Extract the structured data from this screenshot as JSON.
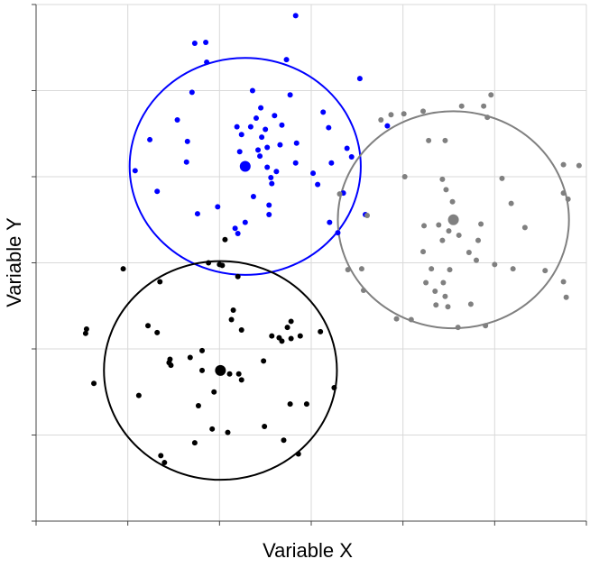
{
  "chart_data": {
    "type": "scatter",
    "title": "",
    "xlabel": "Variable X",
    "ylabel": "Variable Y",
    "xlim": [
      0,
      6
    ],
    "ylim": [
      0,
      6
    ],
    "grid": true,
    "tick_labels_visible": false,
    "legend": "none",
    "series": [
      {
        "color": "#0000ff",
        "center": [
          2.28,
          4.12
        ],
        "radius": 1.26,
        "points": [
          [
            1.73,
            5.55
          ],
          [
            1.85,
            5.56
          ],
          [
            2.83,
            5.87
          ],
          [
            1.86,
            5.33
          ],
          [
            2.73,
            5.36
          ],
          [
            3.53,
            5.14
          ],
          [
            1.7,
            4.98
          ],
          [
            2.36,
            5.0
          ],
          [
            2.77,
            4.95
          ],
          [
            1.54,
            4.66
          ],
          [
            2.45,
            4.8
          ],
          [
            2.6,
            4.71
          ],
          [
            3.13,
            4.75
          ],
          [
            3.83,
            4.59
          ],
          [
            2.19,
            4.58
          ],
          [
            2.4,
            4.68
          ],
          [
            2.34,
            4.58
          ],
          [
            2.5,
            4.55
          ],
          [
            2.68,
            4.6
          ],
          [
            3.19,
            4.57
          ],
          [
            1.24,
            4.43
          ],
          [
            1.65,
            4.41
          ],
          [
            2.24,
            4.49
          ],
          [
            2.46,
            4.46
          ],
          [
            2.42,
            4.31
          ],
          [
            2.84,
            4.39
          ],
          [
            2.66,
            4.37
          ],
          [
            1.64,
            4.17
          ],
          [
            2.22,
            4.29
          ],
          [
            2.52,
            4.34
          ],
          [
            2.44,
            4.24
          ],
          [
            2.83,
            4.16
          ],
          [
            3.39,
            4.33
          ],
          [
            1.08,
            4.07
          ],
          [
            2.52,
            4.11
          ],
          [
            2.62,
            4.06
          ],
          [
            3.22,
            4.16
          ],
          [
            3.44,
            4.23
          ],
          [
            3.02,
            4.04
          ],
          [
            2.56,
            3.99
          ],
          [
            3.07,
            3.91
          ],
          [
            1.32,
            3.83
          ],
          [
            2.57,
            3.92
          ],
          [
            3.35,
            3.81
          ],
          [
            2.37,
            3.77
          ],
          [
            1.98,
            3.65
          ],
          [
            2.54,
            3.67
          ],
          [
            1.76,
            3.57
          ],
          [
            3.59,
            3.56
          ],
          [
            2.54,
            3.56
          ],
          [
            2.28,
            3.47
          ],
          [
            3.2,
            3.47
          ],
          [
            2.17,
            3.4
          ],
          [
            3.29,
            3.35
          ],
          [
            2.2,
            3.34
          ]
        ]
      },
      {
        "color": "#808080",
        "center": [
          4.55,
          3.5
        ],
        "radius": 1.26,
        "points": [
          [
            4.96,
            4.95
          ],
          [
            4.64,
            4.82
          ],
          [
            4.88,
            4.82
          ],
          [
            4.92,
            4.69
          ],
          [
            3.76,
            4.66
          ],
          [
            3.87,
            4.72
          ],
          [
            4.01,
            4.73
          ],
          [
            4.22,
            4.76
          ],
          [
            4.28,
            4.42
          ],
          [
            4.46,
            4.42
          ],
          [
            5.75,
            4.14
          ],
          [
            5.92,
            4.13
          ],
          [
            4.02,
            4.0
          ],
          [
            4.43,
            3.97
          ],
          [
            5.08,
            3.98
          ],
          [
            4.47,
            3.85
          ],
          [
            5.75,
            3.81
          ],
          [
            3.31,
            3.8
          ],
          [
            5.8,
            3.74
          ],
          [
            4.54,
            3.71
          ],
          [
            5.18,
            3.69
          ],
          [
            3.61,
            3.55
          ],
          [
            4.56,
            3.48
          ],
          [
            4.23,
            3.43
          ],
          [
            4.39,
            3.44
          ],
          [
            4.5,
            3.37
          ],
          [
            4.85,
            3.45
          ],
          [
            5.33,
            3.41
          ],
          [
            4.61,
            3.32
          ],
          [
            4.43,
            3.26
          ],
          [
            4.82,
            3.26
          ],
          [
            4.22,
            3.13
          ],
          [
            4.72,
            3.12
          ],
          [
            4.8,
            3.03
          ],
          [
            5.0,
            2.98
          ],
          [
            3.4,
            2.92
          ],
          [
            3.55,
            2.93
          ],
          [
            4.31,
            2.93
          ],
          [
            4.51,
            2.92
          ],
          [
            5.2,
            2.93
          ],
          [
            5.55,
            2.91
          ],
          [
            4.25,
            2.77
          ],
          [
            4.44,
            2.77
          ],
          [
            5.75,
            2.78
          ],
          [
            3.57,
            2.68
          ],
          [
            4.35,
            2.67
          ],
          [
            4.46,
            2.61
          ],
          [
            5.78,
            2.6
          ],
          [
            4.36,
            2.51
          ],
          [
            4.49,
            2.49
          ],
          [
            4.74,
            2.52
          ],
          [
            3.93,
            2.35
          ],
          [
            4.09,
            2.34
          ],
          [
            4.6,
            2.25
          ],
          [
            4.9,
            2.27
          ]
        ]
      },
      {
        "color": "#000000",
        "center": [
          2.01,
          1.75
        ],
        "radius": 1.27,
        "points": [
          [
            2.06,
            3.27
          ],
          [
            2.0,
            2.98
          ],
          [
            1.88,
            3.0
          ],
          [
            2.03,
            2.97
          ],
          [
            0.95,
            2.93
          ],
          [
            2.2,
            2.84
          ],
          [
            1.35,
            2.78
          ],
          [
            2.15,
            2.45
          ],
          [
            2.13,
            2.34
          ],
          [
            1.22,
            2.27
          ],
          [
            2.78,
            2.32
          ],
          [
            2.74,
            2.25
          ],
          [
            0.55,
            2.23
          ],
          [
            1.32,
            2.19
          ],
          [
            2.24,
            2.22
          ],
          [
            3.1,
            2.2
          ],
          [
            0.54,
            2.18
          ],
          [
            2.57,
            2.15
          ],
          [
            2.65,
            2.13
          ],
          [
            2.78,
            2.12
          ],
          [
            2.88,
            2.15
          ],
          [
            2.68,
            2.09
          ],
          [
            1.81,
            1.98
          ],
          [
            1.46,
            1.88
          ],
          [
            1.68,
            1.9
          ],
          [
            2.48,
            1.86
          ],
          [
            1.47,
            1.81
          ],
          [
            2.21,
            1.71
          ],
          [
            1.81,
            1.75
          ],
          [
            2.01,
            1.75
          ],
          [
            2.11,
            1.71
          ],
          [
            1.45,
            1.84
          ],
          [
            2.24,
            1.64
          ],
          [
            1.94,
            1.5
          ],
          [
            3.25,
            1.55
          ],
          [
            0.63,
            1.6
          ],
          [
            1.12,
            1.46
          ],
          [
            2.77,
            1.36
          ],
          [
            2.95,
            1.36
          ],
          [
            1.77,
            1.34
          ],
          [
            1.92,
            1.07
          ],
          [
            2.49,
            1.1
          ],
          [
            2.09,
            1.03
          ],
          [
            1.73,
            0.91
          ],
          [
            2.7,
            0.94
          ],
          [
            1.36,
            0.76
          ],
          [
            2.86,
            0.78
          ],
          [
            1.4,
            0.68
          ]
        ]
      }
    ]
  }
}
